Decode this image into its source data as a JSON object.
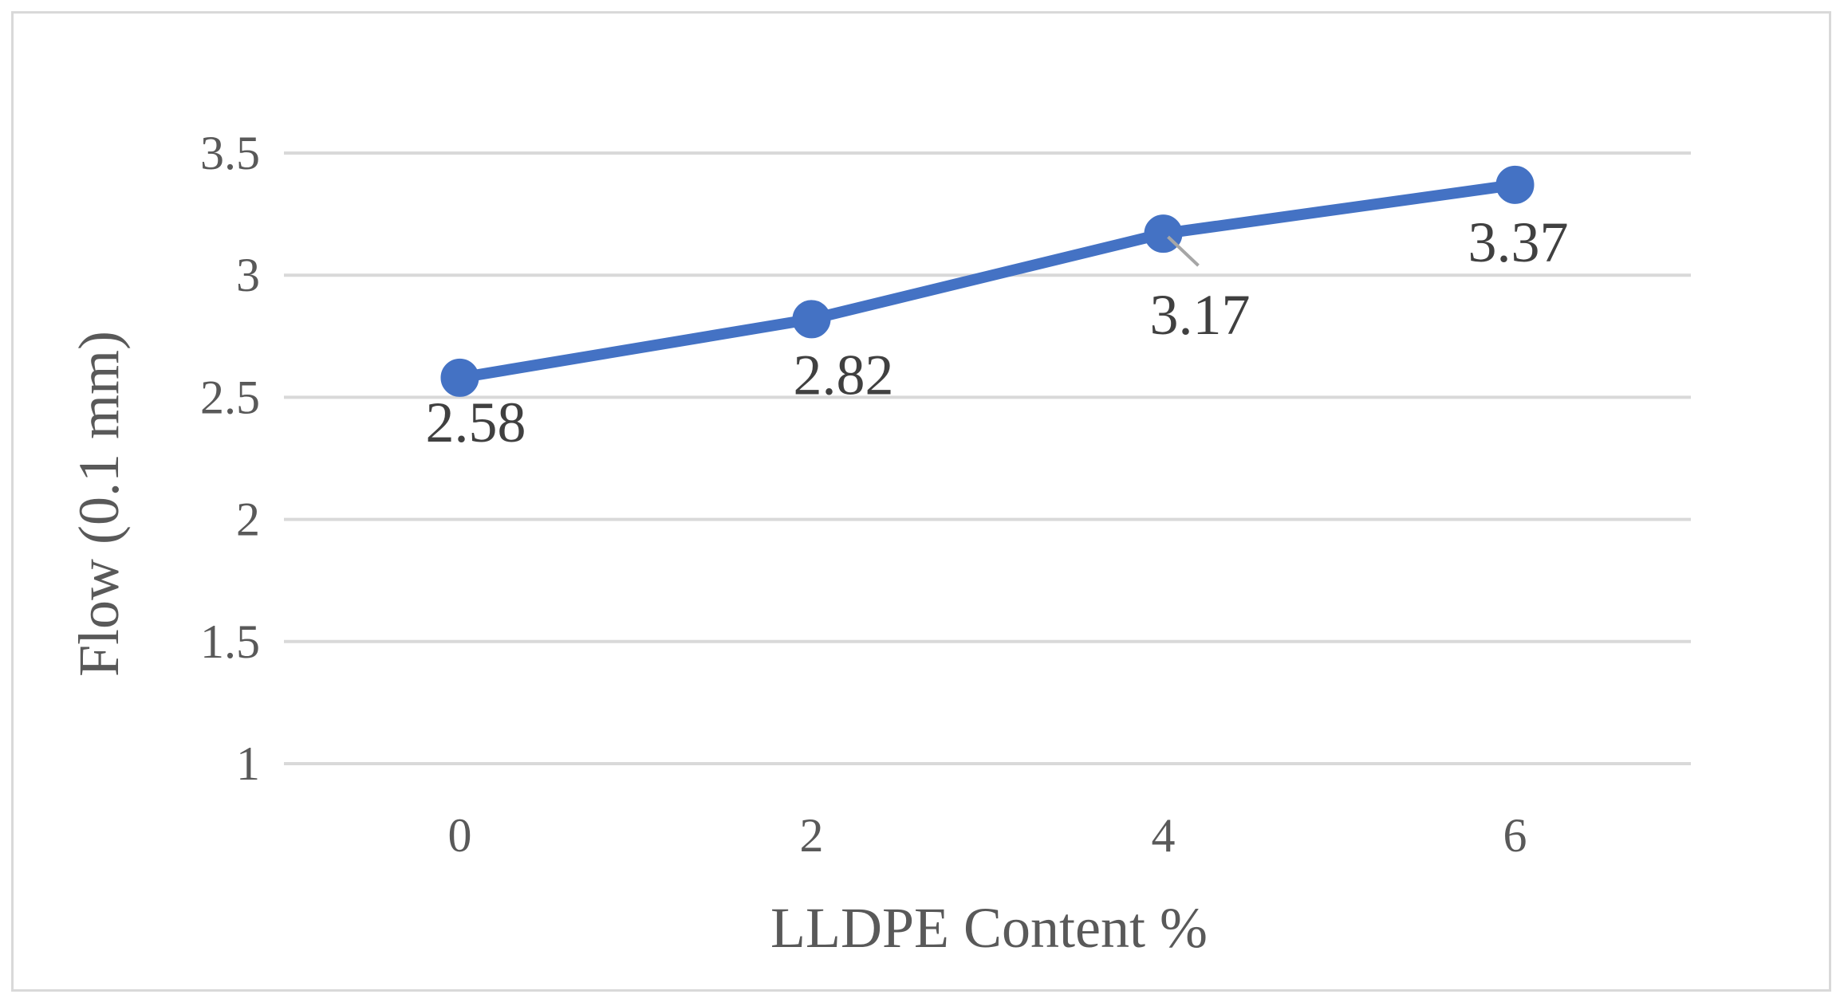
{
  "chart_data": {
    "type": "line",
    "title": "",
    "xlabel": "LLDPE Content %",
    "ylabel": "Flow (0.1 mm)",
    "categories": [
      "0",
      "2",
      "4",
      "6"
    ],
    "series": [
      {
        "values": [
          2.58,
          2.82,
          3.17,
          3.37
        ],
        "color": "#4472c4",
        "data_labels": [
          "2.58",
          "2.82",
          "3.17",
          "3.37"
        ]
      }
    ],
    "y_ticks": [
      "1",
      "1.5",
      "2",
      "2.5",
      "3",
      "3.5"
    ],
    "ylim": [
      1,
      3.5
    ],
    "grid": true,
    "legend": "none",
    "colors": {
      "series": "#4472c4",
      "gridline": "#d9d9d9",
      "text": "#595959",
      "data_label": "#404040",
      "border": "#d9d9d9"
    }
  }
}
